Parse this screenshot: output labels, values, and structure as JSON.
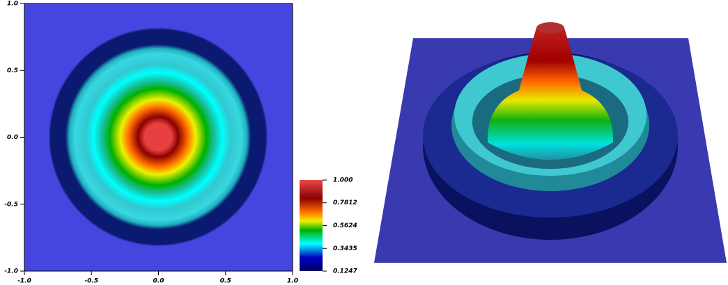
{
  "chart_data": {
    "type": "heatmap",
    "xlim": [
      -1,
      1
    ],
    "ylim": [
      -1,
      1
    ],
    "xticks": [
      {
        "value": -1,
        "label": "-1.0"
      },
      {
        "value": -0.5,
        "label": "-0.5"
      },
      {
        "value": 0,
        "label": "0.0"
      },
      0.5,
      {
        "value": 1,
        "label": "1.0"
      }
    ],
    "yticks": [
      {
        "value": -1,
        "label": "-1.0"
      },
      {
        "value": -0.5,
        "label": "-0.5"
      },
      {
        "value": 0,
        "label": "0.0"
      },
      0.5,
      {
        "value": 1,
        "label": "1.0"
      }
    ],
    "colorbar_lim": [
      0.1247,
      1
    ],
    "colorbar_ticks": [
      {
        "value": 1,
        "label": "1.000"
      },
      0.7812,
      0.5624,
      0.3435,
      0.1247
    ]
  }
}
